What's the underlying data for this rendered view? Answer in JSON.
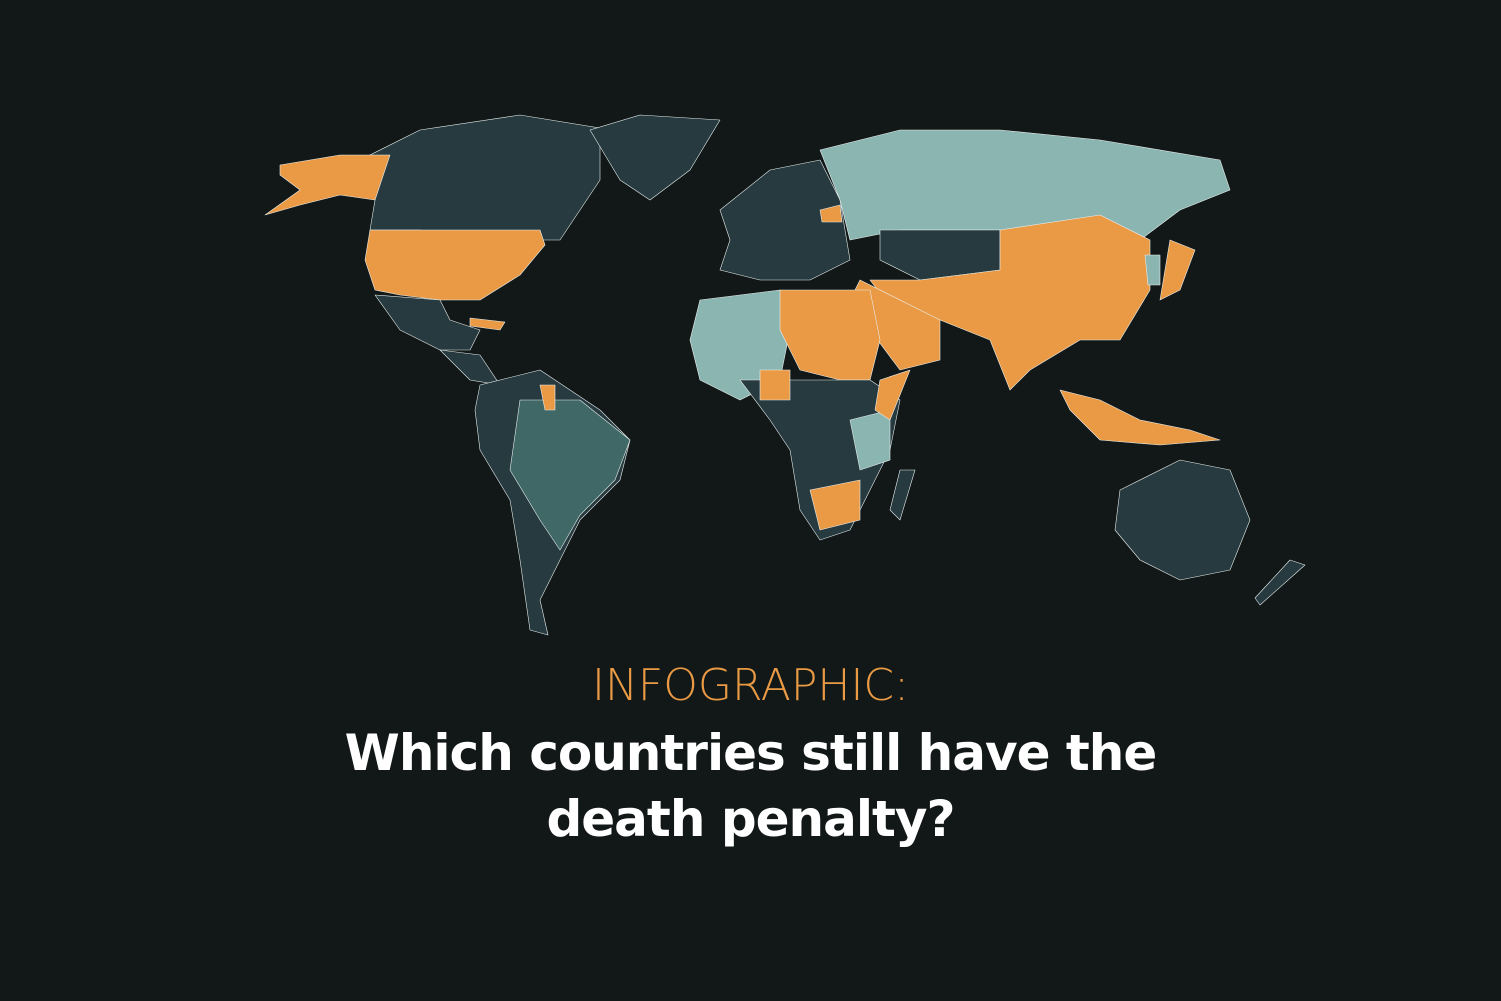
{
  "header": {
    "kicker": "INFOGRAPHIC:",
    "title_line1": "Which countries still have the",
    "title_line2": "death penalty?"
  },
  "map": {
    "colors": {
      "background": "#111817",
      "retains_death_penalty": "#ea9a44",
      "abolished_in_practice": "#8ab5b1",
      "abolished": "#263a3f",
      "abolished_alt": "#3f6866"
    }
  }
}
